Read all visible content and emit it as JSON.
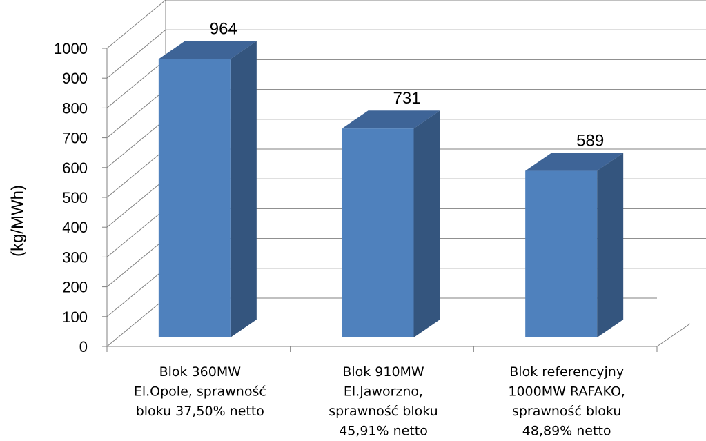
{
  "chart_data": {
    "type": "bar",
    "ylabel": "(kg/MWh)",
    "ylim": [
      0,
      1000
    ],
    "yticks": [
      "0",
      "100",
      "200",
      "300",
      "400",
      "500",
      "600",
      "700",
      "800",
      "900",
      "1000"
    ],
    "categories": [
      [
        "Blok 360MW",
        "El.Opole, sprawność",
        "bloku 37,50% netto"
      ],
      [
        "Blok 910MW",
        "El.Jaworzno,",
        "sprawność bloku",
        "45,91% netto"
      ],
      [
        "Blok referencyjny",
        "1000MW  RAFAKO,",
        "sprawność bloku",
        "48,89% netto"
      ]
    ],
    "values": [
      964,
      731,
      589
    ],
    "data_labels": [
      "964",
      "731",
      "589"
    ],
    "grid": true,
    "three_d": true,
    "colors": {
      "bar_front": "#4F81BD",
      "bar_side": "#34557E",
      "bar_top": "#3E6497",
      "grid": "#808080"
    }
  }
}
